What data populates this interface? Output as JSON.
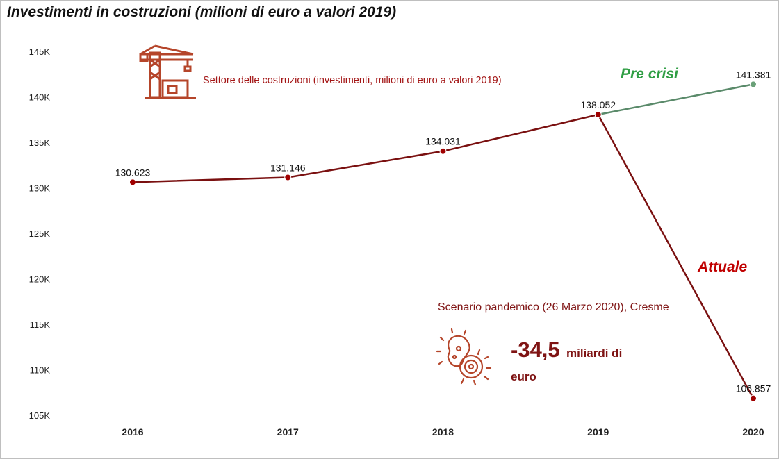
{
  "title": "Investimenti in costruzioni (milioni di euro a valori 2019)",
  "sector_label": "Settore delle costruzioni (investimenti, milioni di euro a valori 2019)",
  "scenario_label": "Scenario pandemico (26 Marzo 2020), Cresme",
  "impact": {
    "value": "-34,5",
    "unit": "miliardi di",
    "unit_line2": "euro"
  },
  "annotations": {
    "pre_crisi": "Pre crisi",
    "attuale": "Attuale"
  },
  "icons": [
    "crane-building-icon",
    "virus-icon"
  ],
  "colors": {
    "actual": "#7a1010",
    "pre_crisis": "#5a8a6a",
    "marker_actual": "#a00000",
    "marker_pre": "#6aa078"
  },
  "chart_data": {
    "type": "line",
    "title": "Investimenti in costruzioni (milioni di euro a valori 2019)",
    "xlabel": "",
    "ylabel": "",
    "categories": [
      "2016",
      "2017",
      "2018",
      "2019",
      "2020"
    ],
    "ylim": [
      105000,
      145000
    ],
    "yticks": [
      105000,
      110000,
      115000,
      120000,
      125000,
      130000,
      135000,
      140000,
      145000
    ],
    "ytick_labels": [
      "105K",
      "110K",
      "115K",
      "120K",
      "125K",
      "130K",
      "135K",
      "140K",
      "145K"
    ],
    "grid": false,
    "series": [
      {
        "name": "Attuale",
        "x": [
          "2016",
          "2017",
          "2018",
          "2019",
          "2020"
        ],
        "values": [
          130623,
          131146,
          134031,
          138052,
          106857
        ],
        "labels": [
          "130.623",
          "131.146",
          "134.031",
          "138.052",
          "106.857"
        ]
      },
      {
        "name": "Pre crisi",
        "x": [
          "2019",
          "2020"
        ],
        "values": [
          138052,
          141381
        ],
        "labels": [
          "",
          "141.381"
        ]
      }
    ]
  }
}
